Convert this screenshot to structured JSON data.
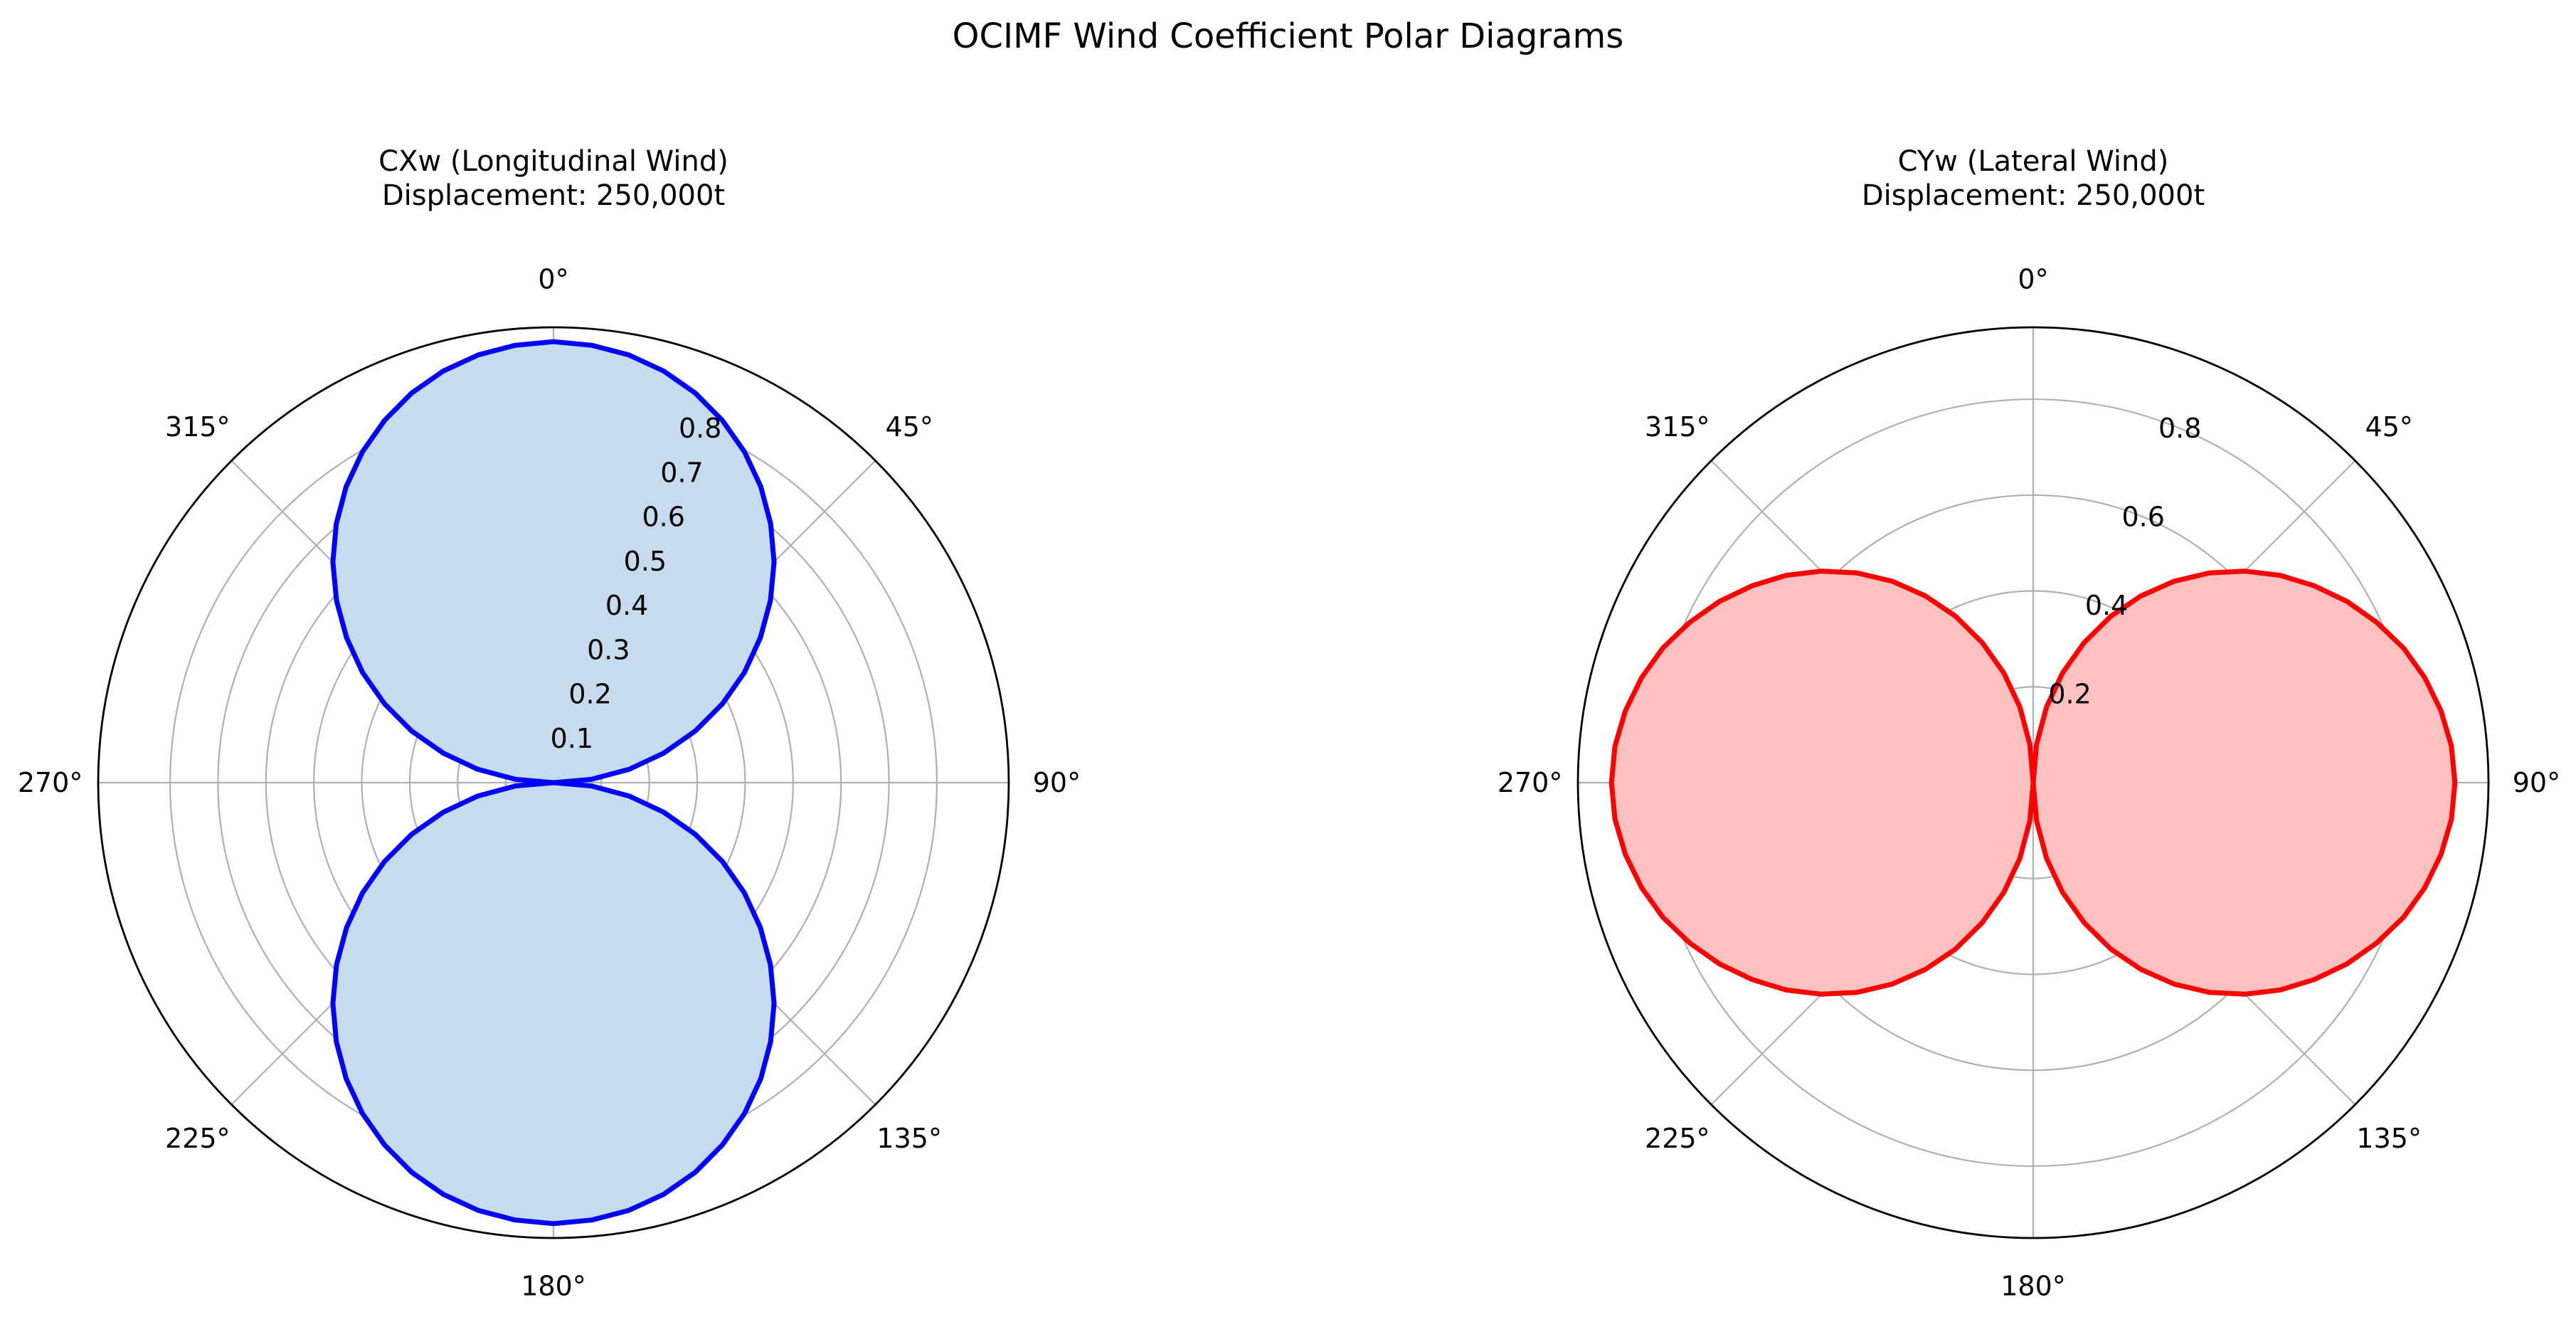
{
  "figure": {
    "title": "OCIMF Wind Coefficient Polar Diagrams"
  },
  "chart_data": [
    {
      "type": "polar-area",
      "title_line1": "CXw (Longitudinal Wind)",
      "title_line2": "Displacement: 250,000t",
      "theta_zero": "N",
      "theta_direction": "clockwise",
      "rlim": [
        0,
        0.95
      ],
      "r_ticks": [
        0.1,
        0.2,
        0.3,
        0.4,
        0.5,
        0.6,
        0.7,
        0.8
      ],
      "r_tick_labels": [
        "0.1",
        "0.2",
        "0.3",
        "0.4",
        "0.5",
        "0.6",
        "0.7",
        "0.8"
      ],
      "r_label_angle_deg": 22.5,
      "theta_ticks_deg": [
        0,
        45,
        90,
        135,
        180,
        225,
        270,
        315
      ],
      "theta_tick_labels": [
        "0°",
        "45°",
        "90°",
        "135°",
        "180°",
        "225°",
        "270°",
        "315°"
      ],
      "grid": true,
      "line_color": "#0000ff",
      "fill_color": "#c6dbee",
      "series": [
        {
          "angle_deg": [
            0,
            5,
            10,
            15,
            20,
            25,
            30,
            35,
            40,
            45,
            50,
            55,
            60,
            65,
            70,
            75,
            80,
            85,
            90,
            95,
            100,
            105,
            110,
            115,
            120,
            125,
            130,
            135,
            140,
            145,
            150,
            155,
            160,
            165,
            170,
            175,
            180
          ],
          "values": [
            0.92,
            0.916,
            0.906,
            0.889,
            0.865,
            0.834,
            0.797,
            0.754,
            0.705,
            0.651,
            0.591,
            0.527,
            0.46,
            0.389,
            0.315,
            0.238,
            0.16,
            0.08,
            0.0,
            0.08,
            0.16,
            0.238,
            0.315,
            0.389,
            0.46,
            0.527,
            0.591,
            0.651,
            0.705,
            0.754,
            0.797,
            0.834,
            0.865,
            0.889,
            0.906,
            0.916,
            0.92
          ],
          "symmetry": "mirror about 0-180 axis"
        }
      ]
    },
    {
      "type": "polar-area",
      "title_line1": "CYw (Lateral Wind)",
      "title_line2": "Displacement: 250,000t",
      "theta_zero": "N",
      "theta_direction": "clockwise",
      "rlim": [
        0,
        0.95
      ],
      "r_ticks": [
        0.2,
        0.4,
        0.6,
        0.8
      ],
      "r_tick_labels": [
        "0.2",
        "0.4",
        "0.6",
        "0.8"
      ],
      "r_label_angle_deg": 22.5,
      "theta_ticks_deg": [
        0,
        45,
        90,
        135,
        180,
        225,
        270,
        315
      ],
      "theta_tick_labels": [
        "0°",
        "45°",
        "90°",
        "135°",
        "180°",
        "225°",
        "270°",
        "315°"
      ],
      "grid": true,
      "line_color": "#ff0000",
      "fill_color": "#ffc0c0",
      "series": [
        {
          "angle_deg": [
            0,
            5,
            10,
            15,
            20,
            25,
            30,
            35,
            40,
            45,
            50,
            55,
            60,
            65,
            70,
            75,
            80,
            85,
            90,
            95,
            100,
            105,
            110,
            115,
            120,
            125,
            130,
            135,
            140,
            145,
            150,
            155,
            160,
            165,
            170,
            175,
            180
          ],
          "values": [
            0.0,
            0.08,
            0.16,
            0.237,
            0.311,
            0.383,
            0.45,
            0.513,
            0.571,
            0.624,
            0.673,
            0.716,
            0.756,
            0.791,
            0.822,
            0.846,
            0.864,
            0.876,
            0.88,
            0.876,
            0.864,
            0.846,
            0.822,
            0.791,
            0.756,
            0.716,
            0.673,
            0.624,
            0.571,
            0.513,
            0.45,
            0.383,
            0.311,
            0.237,
            0.16,
            0.08,
            0.0
          ],
          "symmetry": "mirror about 0-180 axis"
        }
      ]
    }
  ]
}
